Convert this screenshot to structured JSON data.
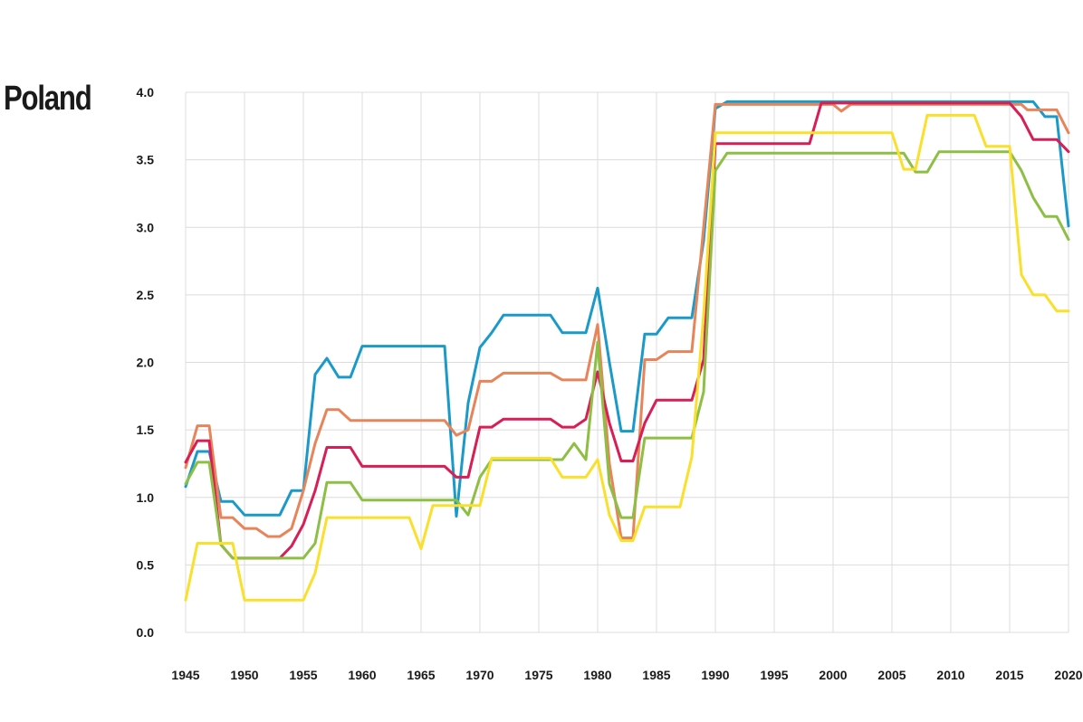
{
  "page": {
    "title": "Poland"
  },
  "chart_data": {
    "type": "line",
    "title": "Poland",
    "xlabel": "",
    "ylabel": "",
    "xlim": [
      1945,
      2020
    ],
    "ylim": [
      0,
      4
    ],
    "x_ticks": [
      1945,
      1950,
      1955,
      1960,
      1965,
      1970,
      1975,
      1980,
      1985,
      1990,
      1995,
      2000,
      2005,
      2010,
      2015,
      2020
    ],
    "y_ticks": [
      0.0,
      0.5,
      1.0,
      1.5,
      2.0,
      2.5,
      3.0,
      3.5,
      4.0
    ],
    "grid": true,
    "legend": "none",
    "series": [
      {
        "color": "#1a9ac9",
        "points": [
          [
            1945,
            1.08
          ],
          [
            1946,
            1.34
          ],
          [
            1947,
            1.34
          ],
          [
            1948,
            0.97
          ],
          [
            1949,
            0.97
          ],
          [
            1950,
            0.87
          ],
          [
            1953,
            0.87
          ],
          [
            1954,
            1.05
          ],
          [
            1955,
            1.05
          ],
          [
            1956,
            1.91
          ],
          [
            1957,
            2.03
          ],
          [
            1958,
            1.89
          ],
          [
            1959,
            1.89
          ],
          [
            1960,
            2.12
          ],
          [
            1967,
            2.12
          ],
          [
            1968,
            0.86
          ],
          [
            1969,
            1.7
          ],
          [
            1970,
            2.11
          ],
          [
            1971,
            2.22
          ],
          [
            1972,
            2.35
          ],
          [
            1976,
            2.35
          ],
          [
            1977,
            2.22
          ],
          [
            1979,
            2.22
          ],
          [
            1980,
            2.55
          ],
          [
            1981,
            2.0
          ],
          [
            1982,
            1.49
          ],
          [
            1983,
            1.49
          ],
          [
            1984,
            2.21
          ],
          [
            1985,
            2.21
          ],
          [
            1986,
            2.33
          ],
          [
            1988,
            2.33
          ],
          [
            1989,
            2.9
          ],
          [
            1990,
            3.88
          ],
          [
            1991,
            3.93
          ],
          [
            2017,
            3.93
          ],
          [
            2018,
            3.82
          ],
          [
            2019,
            3.82
          ],
          [
            2020,
            3.01
          ]
        ]
      },
      {
        "color": "#e8845a",
        "points": [
          [
            1945,
            1.22
          ],
          [
            1946,
            1.53
          ],
          [
            1947,
            1.53
          ],
          [
            1948,
            0.85
          ],
          [
            1949,
            0.85
          ],
          [
            1950,
            0.77
          ],
          [
            1951,
            0.77
          ],
          [
            1952,
            0.71
          ],
          [
            1953,
            0.71
          ],
          [
            1954,
            0.77
          ],
          [
            1955,
            1.05
          ],
          [
            1956,
            1.4
          ],
          [
            1957,
            1.65
          ],
          [
            1958,
            1.65
          ],
          [
            1959,
            1.57
          ],
          [
            1967,
            1.57
          ],
          [
            1968,
            1.46
          ],
          [
            1969,
            1.5
          ],
          [
            1970,
            1.86
          ],
          [
            1971,
            1.86
          ],
          [
            1972,
            1.92
          ],
          [
            1976,
            1.92
          ],
          [
            1977,
            1.87
          ],
          [
            1979,
            1.87
          ],
          [
            1980,
            2.28
          ],
          [
            1981,
            1.25
          ],
          [
            1982,
            0.7
          ],
          [
            1983,
            0.7
          ],
          [
            1984,
            2.02
          ],
          [
            1985,
            2.02
          ],
          [
            1986,
            2.08
          ],
          [
            1988,
            2.08
          ],
          [
            1989,
            3.0
          ],
          [
            1990,
            3.91
          ],
          [
            2000,
            3.91
          ],
          [
            2000.7,
            3.86
          ],
          [
            2001.5,
            3.91
          ],
          [
            2016,
            3.91
          ],
          [
            2016.5,
            3.87
          ],
          [
            2019,
            3.87
          ],
          [
            2020,
            3.7
          ]
        ]
      },
      {
        "color": "#d81f55",
        "points": [
          [
            1945,
            1.26
          ],
          [
            1946,
            1.42
          ],
          [
            1947,
            1.42
          ],
          [
            1948,
            0.65
          ],
          [
            1949,
            0.55
          ],
          [
            1953,
            0.55
          ],
          [
            1954,
            0.64
          ],
          [
            1955,
            0.8
          ],
          [
            1956,
            1.05
          ],
          [
            1957,
            1.37
          ],
          [
            1959,
            1.37
          ],
          [
            1960,
            1.23
          ],
          [
            1967,
            1.23
          ],
          [
            1968,
            1.15
          ],
          [
            1969,
            1.15
          ],
          [
            1970,
            1.52
          ],
          [
            1971,
            1.52
          ],
          [
            1972,
            1.58
          ],
          [
            1976,
            1.58
          ],
          [
            1977,
            1.52
          ],
          [
            1978,
            1.52
          ],
          [
            1979,
            1.58
          ],
          [
            1980,
            1.93
          ],
          [
            1981,
            1.55
          ],
          [
            1982,
            1.27
          ],
          [
            1983,
            1.27
          ],
          [
            1984,
            1.55
          ],
          [
            1985,
            1.72
          ],
          [
            1988,
            1.72
          ],
          [
            1989,
            2.02
          ],
          [
            1990,
            3.62
          ],
          [
            1998,
            3.62
          ],
          [
            1999,
            3.92
          ],
          [
            2015,
            3.92
          ],
          [
            2016,
            3.82
          ],
          [
            2017,
            3.65
          ],
          [
            2019,
            3.65
          ],
          [
            2020,
            3.56
          ]
        ]
      },
      {
        "color": "#8dbf44",
        "points": [
          [
            1945,
            1.1
          ],
          [
            1946,
            1.26
          ],
          [
            1947,
            1.26
          ],
          [
            1948,
            0.65
          ],
          [
            1949,
            0.55
          ],
          [
            1955,
            0.55
          ],
          [
            1956,
            0.66
          ],
          [
            1957,
            1.11
          ],
          [
            1959,
            1.11
          ],
          [
            1960,
            0.98
          ],
          [
            1968,
            0.98
          ],
          [
            1969,
            0.87
          ],
          [
            1970,
            1.15
          ],
          [
            1971,
            1.28
          ],
          [
            1977,
            1.28
          ],
          [
            1978,
            1.4
          ],
          [
            1979,
            1.28
          ],
          [
            1980,
            2.15
          ],
          [
            1981,
            1.1
          ],
          [
            1982,
            0.85
          ],
          [
            1983,
            0.85
          ],
          [
            1984,
            1.44
          ],
          [
            1988,
            1.44
          ],
          [
            1989,
            1.78
          ],
          [
            1990,
            3.42
          ],
          [
            1991,
            3.55
          ],
          [
            2006,
            3.55
          ],
          [
            2007,
            3.41
          ],
          [
            2008,
            3.41
          ],
          [
            2009,
            3.56
          ],
          [
            2015,
            3.56
          ],
          [
            2016,
            3.42
          ],
          [
            2017,
            3.22
          ],
          [
            2018,
            3.08
          ],
          [
            2019,
            3.08
          ],
          [
            2020,
            2.91
          ]
        ]
      },
      {
        "color": "#f9e02a",
        "points": [
          [
            1945,
            0.24
          ],
          [
            1946,
            0.66
          ],
          [
            1949,
            0.66
          ],
          [
            1950,
            0.24
          ],
          [
            1955,
            0.24
          ],
          [
            1956,
            0.44
          ],
          [
            1957,
            0.85
          ],
          [
            1963,
            0.85
          ],
          [
            1964,
            0.85
          ],
          [
            1965,
            0.62
          ],
          [
            1966,
            0.94
          ],
          [
            1969,
            0.94
          ],
          [
            1970,
            0.94
          ],
          [
            1971,
            1.29
          ],
          [
            1976,
            1.29
          ],
          [
            1977,
            1.15
          ],
          [
            1979,
            1.15
          ],
          [
            1980,
            1.28
          ],
          [
            1981,
            0.87
          ],
          [
            1982,
            0.68
          ],
          [
            1983,
            0.68
          ],
          [
            1984,
            0.93
          ],
          [
            1987,
            0.93
          ],
          [
            1988,
            1.3
          ],
          [
            1989,
            2.35
          ],
          [
            1990,
            3.7
          ],
          [
            2005,
            3.7
          ],
          [
            2006,
            3.43
          ],
          [
            2007,
            3.43
          ],
          [
            2008,
            3.83
          ],
          [
            2012,
            3.83
          ],
          [
            2013,
            3.6
          ],
          [
            2015,
            3.6
          ],
          [
            2016,
            2.65
          ],
          [
            2017,
            2.5
          ],
          [
            2018,
            2.5
          ],
          [
            2019,
            2.38
          ],
          [
            2020,
            2.38
          ]
        ]
      }
    ]
  }
}
